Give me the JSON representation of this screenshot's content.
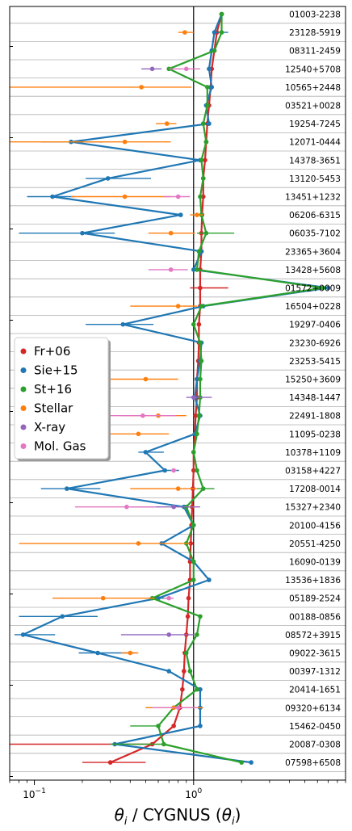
{
  "chart_data": {
    "type": "scatter",
    "xlabel_math": "θ",
    "xlabel_sub": "i",
    "xlabel_text": " / CYGNUS (",
    "xlabel_end": ")",
    "xscale": "log",
    "xlim": [
      0.07,
      9.0
    ],
    "xticks": [
      {
        "value": 0.1,
        "base": "10",
        "exp": "−1"
      },
      {
        "value": 1,
        "base": "10",
        "exp": "0"
      }
    ],
    "reference_line": 1,
    "legend_placement": "center-left",
    "sources": [
      "01003-2238",
      "23128-5919",
      "08311-2459",
      "12540+5708",
      "10565+2448",
      "03521+0028",
      "19254-7245",
      "12071-0444",
      "14378-3651",
      "13120-5453",
      "13451+1232",
      "06206-6315",
      "06035-7102",
      "23365+3604",
      "13428+5608",
      "01572+0009",
      "16504+0228",
      "19297-0406",
      "23230-6926",
      "23253-5415",
      "15250+3609",
      "14348-1447",
      "22491-1808",
      "11095-0238",
      "10378+1109",
      "03158+4227",
      "17208-0014",
      "15327+2340",
      "20100-4156",
      "20551-4250",
      "16090-0139",
      "13536+1836",
      "05189-2524",
      "00188-0856",
      "08572+3915",
      "09022-3615",
      "00397-1312",
      "20414-1651",
      "09320+6134",
      "15462-0450",
      "20087-0308",
      "07598+6508"
    ],
    "series": [
      {
        "name": "Fr+06",
        "color": "#d62728",
        "style": "line",
        "values": [
          1.5,
          1.4,
          1.35,
          1.3,
          1.28,
          1.25,
          1.22,
          1.2,
          1.18,
          1.15,
          1.15,
          1.13,
          1.12,
          1.12,
          1.1,
          1.1,
          1.1,
          1.08,
          1.08,
          1.07,
          1.05,
          1.05,
          1.03,
          1.02,
          1.0,
          1.0,
          0.99,
          0.98,
          0.97,
          0.96,
          0.95,
          0.95,
          0.93,
          0.92,
          0.9,
          0.88,
          0.87,
          0.85,
          0.82,
          0.75,
          0.55,
          0.3
        ],
        "err_lo": [
          0,
          0,
          0,
          0,
          0,
          0,
          0,
          0,
          0,
          0,
          0,
          0,
          0,
          0,
          0,
          0.15,
          0,
          0,
          0,
          0,
          0,
          0,
          0,
          0,
          0,
          0,
          0,
          0,
          0,
          0,
          0,
          0,
          0,
          0,
          0,
          0,
          0,
          0,
          0,
          0,
          0.5,
          0.1
        ],
        "err_hi": [
          0,
          0,
          0,
          0,
          0,
          0,
          0,
          0,
          0,
          0,
          0,
          0,
          0,
          0,
          0,
          0.55,
          0,
          0,
          0,
          0,
          0,
          0,
          0,
          0,
          0,
          0,
          0,
          0,
          0,
          0,
          0,
          0,
          0,
          0,
          0,
          0,
          0,
          0,
          0,
          0,
          0,
          0.2
        ]
      },
      {
        "name": "Sie+15",
        "color": "#1f77b4",
        "style": "line",
        "values": [
          1.5,
          1.35,
          1.3,
          1.25,
          1.3,
          1.2,
          1.25,
          0.17,
          1.1,
          0.29,
          0.13,
          0.83,
          0.2,
          1.12,
          1.0,
          7.0,
          1.15,
          0.36,
          1.12,
          1.1,
          1.05,
          1.02,
          1.1,
          1.02,
          0.5,
          0.66,
          0.16,
          0.87,
          1.0,
          0.63,
          1.0,
          1.25,
          0.6,
          0.15,
          0.085,
          0.25,
          0.7,
          1.1,
          1.1,
          1.1,
          0.32,
          2.3
        ],
        "err_lo": [
          0,
          0,
          0,
          0,
          0,
          0,
          0,
          0.06,
          0,
          0.08,
          0.04,
          0,
          0.12,
          0,
          0,
          0,
          0,
          0.15,
          0,
          0,
          0,
          0,
          0,
          0,
          0.05,
          0,
          0.05,
          0,
          0,
          0,
          0,
          0,
          0.06,
          0.07,
          0.01,
          0.06,
          0,
          0,
          0,
          0,
          0,
          0
        ],
        "err_hi": [
          0,
          0.3,
          0,
          0,
          0,
          0,
          0,
          0.1,
          0,
          0.25,
          0.05,
          0,
          0.12,
          0,
          0,
          0,
          0,
          0.2,
          0,
          0,
          0,
          0,
          0,
          0,
          0.15,
          0.15,
          0.1,
          0,
          0,
          0,
          0,
          0,
          0.1,
          0.1,
          0.05,
          0.18,
          0,
          0,
          0,
          0,
          0,
          0
        ]
      },
      {
        "name": "St+16",
        "color": "#2ca02c",
        "style": "line",
        "values": [
          1.5,
          1.5,
          1.35,
          0.7,
          1.22,
          1.22,
          1.15,
          1.2,
          1.12,
          1.15,
          1.1,
          1.12,
          1.2,
          1.08,
          1.05,
          6.5,
          1.12,
          1.0,
          1.1,
          1.12,
          1.1,
          1.1,
          1.08,
          1.05,
          1.0,
          1.05,
          1.15,
          0.9,
          1.0,
          0.9,
          1.0,
          1.0,
          0.55,
          1.1,
          1.05,
          0.9,
          0.95,
          1.05,
          0.75,
          0.6,
          0.65,
          2.0
        ],
        "err_lo": [
          0,
          0,
          0,
          0,
          0,
          0,
          0,
          0,
          0,
          0,
          0,
          0,
          0.15,
          0,
          0,
          0,
          0,
          0,
          0,
          0,
          0,
          0,
          0,
          0,
          0,
          0,
          0.1,
          0,
          0,
          0,
          0,
          0,
          0,
          0,
          0,
          0,
          0,
          0,
          0.25,
          0.2,
          0.35,
          0
        ],
        "err_hi": [
          0,
          0,
          0,
          0,
          0,
          0,
          0,
          0,
          0,
          0,
          0,
          0,
          0.6,
          0,
          0,
          0,
          0,
          0,
          0,
          0,
          0,
          0,
          0,
          0,
          0,
          0,
          0.2,
          0,
          0,
          0,
          0,
          0,
          0,
          0,
          0,
          0,
          0,
          0,
          0.25,
          0,
          0,
          0
        ]
      },
      {
        "name": "Stellar",
        "color": "#ff7f0e",
        "style": "points",
        "values": [
          null,
          0.88,
          null,
          null,
          0.47,
          null,
          0.68,
          0.37,
          null,
          null,
          0.37,
          1.05,
          0.72,
          null,
          null,
          null,
          0.8,
          null,
          null,
          null,
          0.5,
          null,
          0.6,
          0.45,
          null,
          null,
          0.8,
          null,
          null,
          0.45,
          null,
          null,
          0.27,
          null,
          null,
          0.4,
          null,
          null,
          0.75,
          null,
          null,
          null
        ],
        "err_lo": [
          0,
          0.08,
          0,
          0,
          0.42,
          0,
          0.1,
          0.3,
          0,
          0,
          0.2,
          0.1,
          0.2,
          0,
          0,
          0,
          0.4,
          0,
          0,
          0,
          0.2,
          0,
          0.25,
          0.3,
          0,
          0,
          0.4,
          0,
          0,
          0.37,
          0,
          0,
          0.14,
          0,
          0,
          0.05,
          0,
          0,
          0.25,
          0,
          0,
          0
        ],
        "err_hi": [
          0,
          0.12,
          0,
          0,
          0.5,
          0,
          0.1,
          0.35,
          0,
          0,
          0.35,
          0.1,
          0.3,
          0,
          0,
          0,
          0.25,
          0,
          0,
          0,
          0.3,
          0,
          0.3,
          0.25,
          0,
          0,
          0.25,
          0,
          0,
          0.5,
          0,
          0,
          0.3,
          0,
          0,
          0.05,
          0,
          0,
          0.4,
          0,
          0,
          0
        ]
      },
      {
        "name": "X-ray",
        "color": "#9467bd",
        "style": "points",
        "values": [
          null,
          null,
          null,
          0.55,
          null,
          null,
          null,
          null,
          null,
          null,
          null,
          null,
          null,
          null,
          null,
          null,
          null,
          null,
          null,
          null,
          null,
          1.0,
          null,
          null,
          null,
          null,
          null,
          0.75,
          null,
          null,
          null,
          null,
          null,
          null,
          0.7,
          null,
          null,
          null,
          null,
          null,
          null,
          null
        ],
        "err_lo": [
          0,
          0,
          0,
          0.08,
          0,
          0,
          0,
          0,
          0,
          0,
          0,
          0,
          0,
          0,
          0,
          0,
          0,
          0,
          0,
          0,
          0,
          0.1,
          0,
          0,
          0,
          0,
          0,
          0.35,
          0,
          0,
          0,
          0,
          0,
          0,
          0.35,
          0,
          0,
          0,
          0,
          0,
          0,
          0
        ],
        "err_hi": [
          0,
          0,
          0,
          0.08,
          0,
          0,
          0,
          0,
          0,
          0,
          0,
          0,
          0,
          0,
          0,
          0,
          0,
          0,
          0,
          0,
          0,
          0.3,
          0,
          0,
          0,
          0,
          0,
          0.35,
          0,
          0,
          0,
          0,
          0,
          0,
          0.3,
          0,
          0,
          0,
          0,
          0,
          0,
          0
        ]
      },
      {
        "name": "Mol. Gas",
        "color": "#e377c2",
        "style": "points",
        "values": [
          null,
          null,
          null,
          0.9,
          null,
          null,
          null,
          null,
          null,
          null,
          0.8,
          null,
          null,
          null,
          0.72,
          null,
          null,
          null,
          null,
          null,
          null,
          null,
          0.48,
          null,
          null,
          0.75,
          null,
          0.38,
          null,
          null,
          null,
          null,
          0.7,
          null,
          null,
          null,
          null,
          null,
          0.8,
          null,
          null,
          null
        ],
        "err_lo": [
          0,
          0,
          0,
          0.2,
          0,
          0,
          0,
          0,
          0,
          0,
          0.15,
          0,
          0,
          0,
          0.2,
          0,
          0,
          0,
          0,
          0,
          0,
          0,
          0.3,
          0,
          0,
          0.03,
          0,
          0.2,
          0,
          0,
          0,
          0,
          0.05,
          0,
          0,
          0,
          0,
          0,
          0.25,
          0,
          0,
          0
        ],
        "err_hi": [
          0,
          0,
          0,
          0.2,
          0,
          0,
          0,
          0,
          0,
          0,
          0.15,
          0,
          0,
          0,
          0.2,
          0,
          0,
          0,
          0,
          0,
          0,
          0,
          0.3,
          0,
          0,
          0.03,
          0,
          0.2,
          0,
          0,
          0,
          0,
          0.05,
          0,
          0,
          0,
          0,
          0,
          0.25,
          0,
          0,
          0
        ]
      }
    ]
  }
}
